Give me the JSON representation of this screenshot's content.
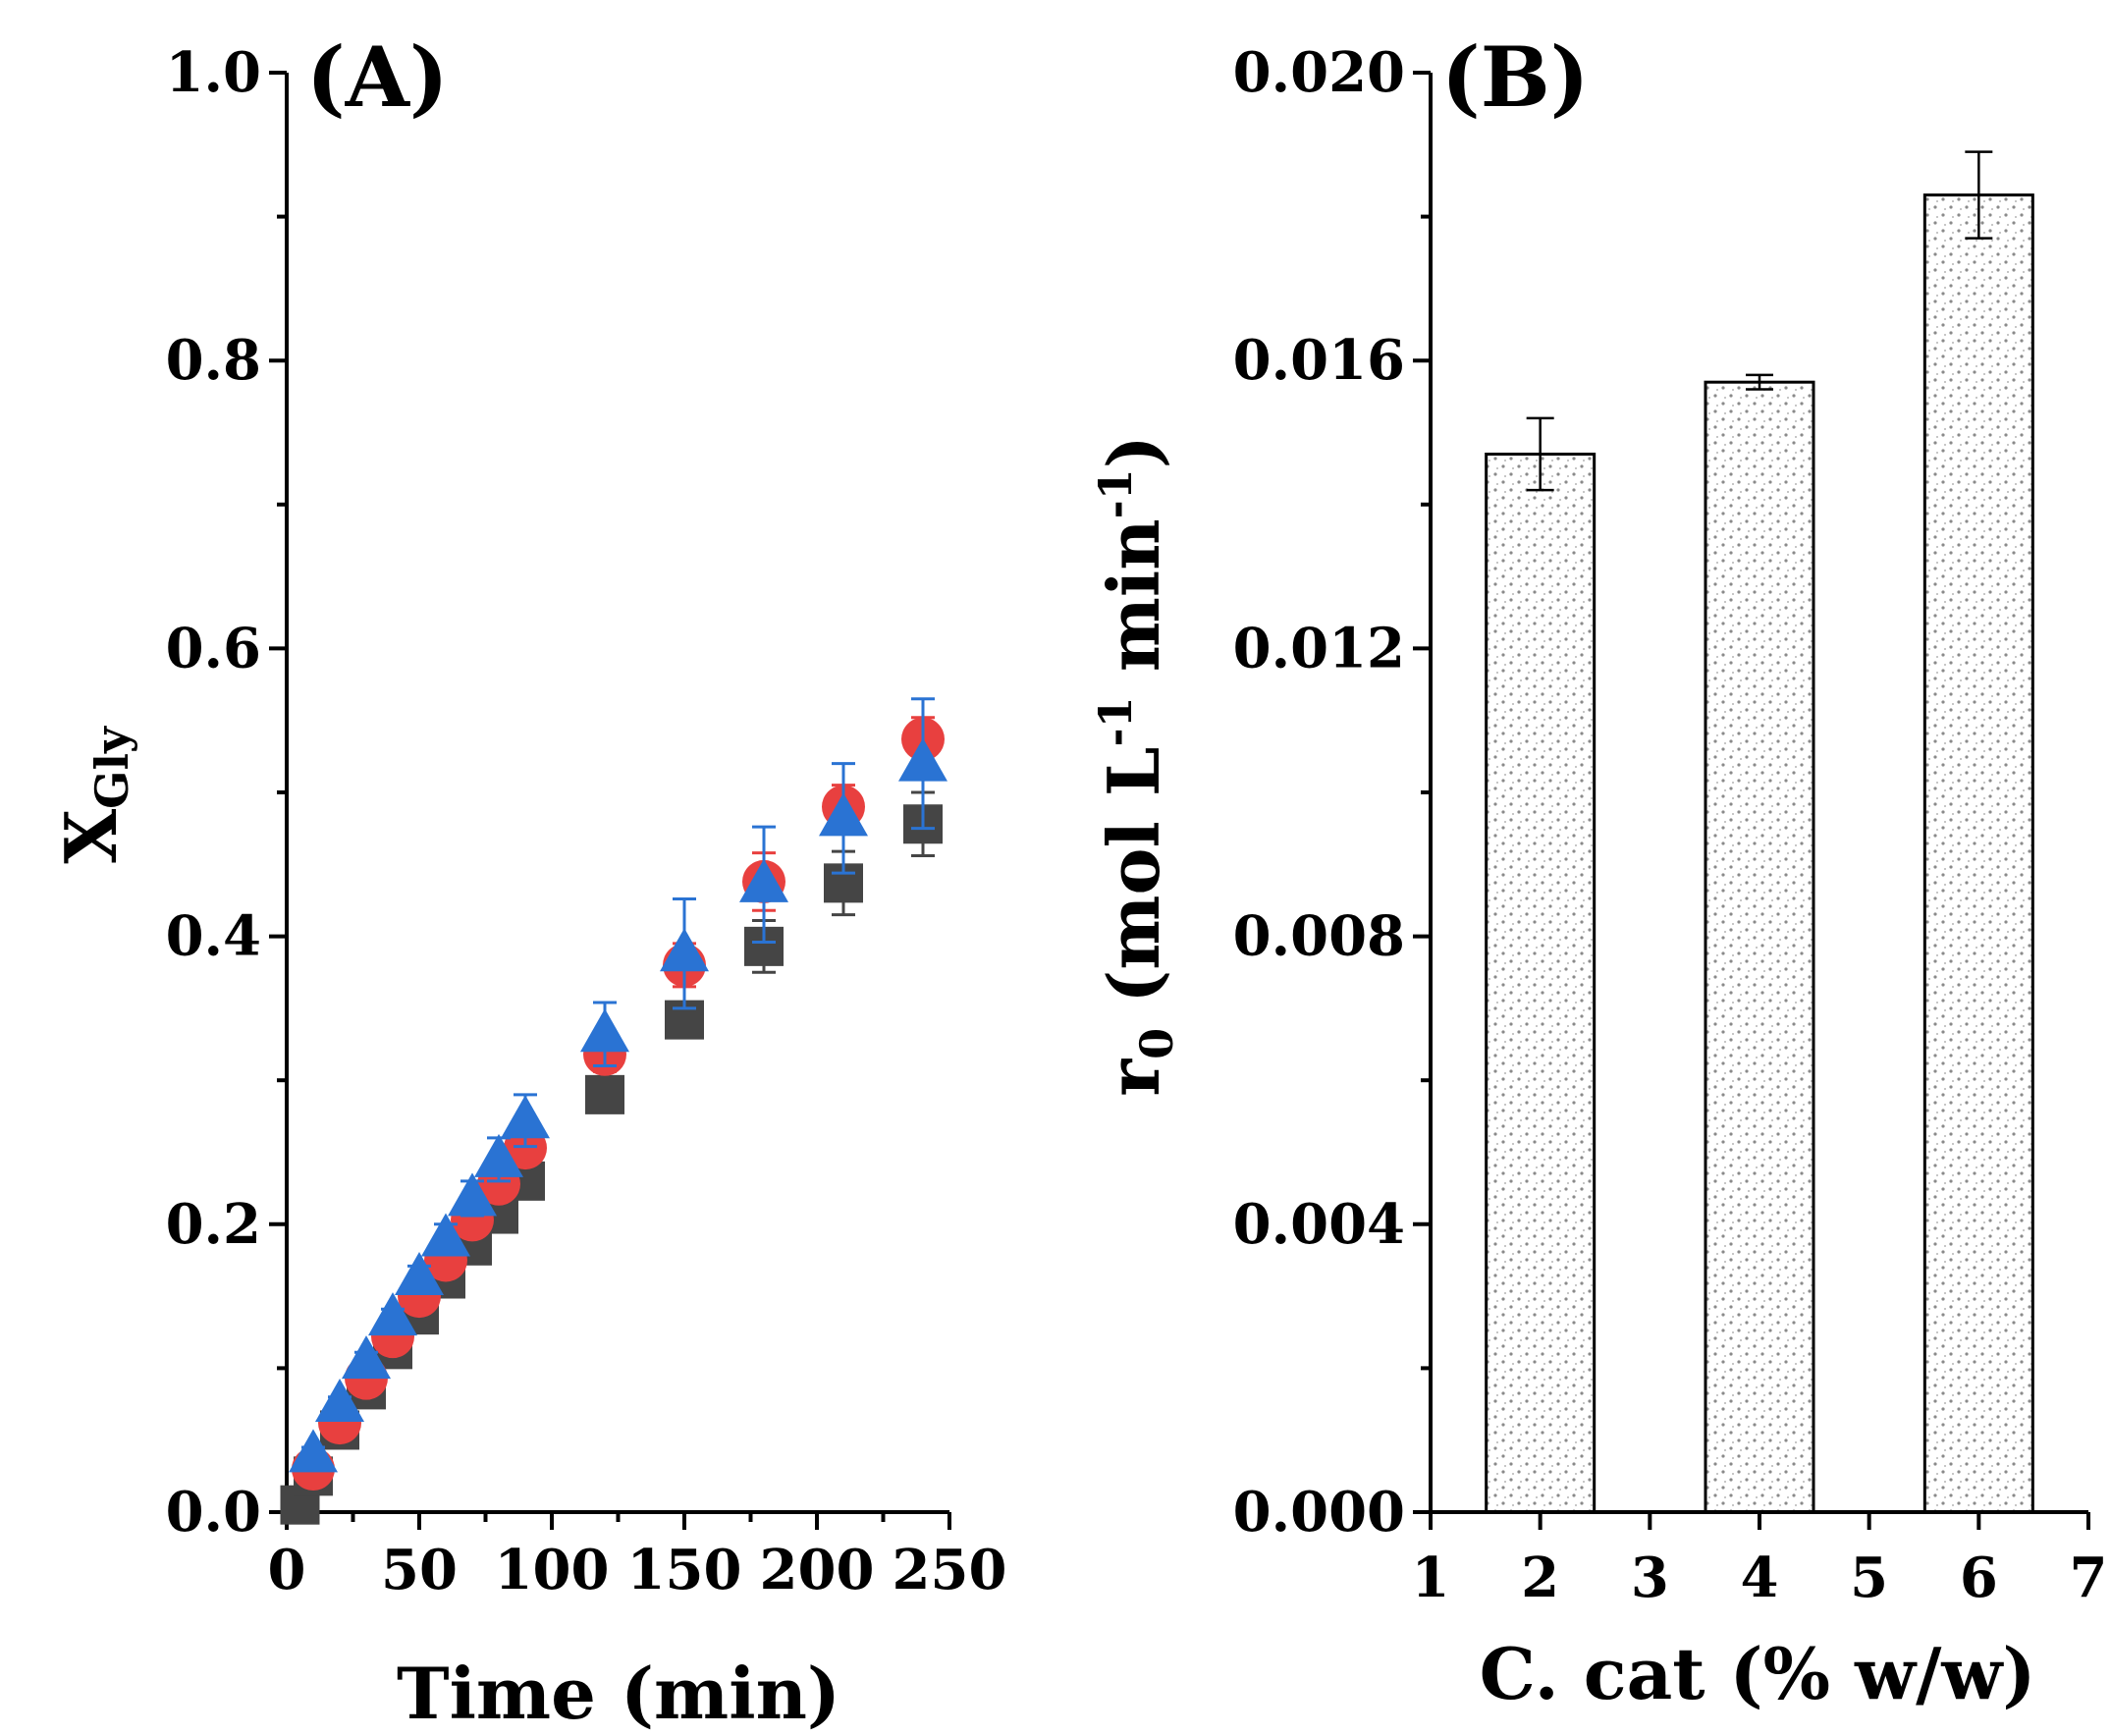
{
  "chart_data": [
    {
      "type": "scatter",
      "panel_label": "(A)",
      "xlabel": "Time (min)",
      "ylabel": "X",
      "ylabel_sub": "Gly",
      "xlim": [
        0,
        250
      ],
      "ylim": [
        0,
        1.0
      ],
      "x_ticks": [
        "0",
        "50",
        "100",
        "150",
        "200",
        "250"
      ],
      "y_ticks": [
        "0.0",
        "0.2",
        "0.4",
        "0.6",
        "0.8",
        "1.0"
      ],
      "series": [
        {
          "name": "square",
          "marker": "square",
          "color": "#454545",
          "x": [
            5,
            10,
            20,
            30,
            40,
            50,
            60,
            70,
            80,
            90,
            120,
            150,
            180,
            210,
            240
          ],
          "y": [
            0.005,
            0.025,
            0.057,
            0.085,
            0.113,
            0.137,
            0.162,
            0.185,
            0.207,
            0.23,
            0.29,
            0.342,
            0.393,
            0.437,
            0.478
          ],
          "err": [
            0.002,
            0.003,
            0.004,
            0.005,
            0.005,
            0.005,
            0.006,
            0.006,
            0.007,
            0.007,
            0.008,
            0.009,
            0.018,
            0.022,
            0.022
          ]
        },
        {
          "name": "circle",
          "marker": "circle",
          "color": "#e8403f",
          "x": [
            10,
            20,
            30,
            40,
            50,
            60,
            70,
            80,
            90,
            120,
            150,
            180,
            210,
            240
          ],
          "y": [
            0.03,
            0.062,
            0.093,
            0.122,
            0.15,
            0.175,
            0.203,
            0.228,
            0.253,
            0.318,
            0.38,
            0.438,
            0.49,
            0.537
          ],
          "err": [
            0.004,
            0.004,
            0.005,
            0.005,
            0.006,
            0.006,
            0.007,
            0.007,
            0.008,
            0.012,
            0.015,
            0.02,
            0.015,
            0.015
          ]
        },
        {
          "name": "triangle",
          "marker": "triangle",
          "color": "#2a73d3",
          "x": [
            10,
            20,
            30,
            40,
            50,
            60,
            70,
            80,
            90,
            120,
            150,
            180,
            210,
            240
          ],
          "y": [
            0.04,
            0.075,
            0.105,
            0.135,
            0.163,
            0.19,
            0.218,
            0.245,
            0.272,
            0.332,
            0.388,
            0.436,
            0.482,
            0.52
          ],
          "err": [
            0.005,
            0.005,
            0.006,
            0.006,
            0.008,
            0.01,
            0.012,
            0.015,
            0.018,
            0.022,
            0.038,
            0.04,
            0.038,
            0.045
          ]
        }
      ]
    },
    {
      "type": "bar",
      "panel_label": "(B)",
      "xlabel": "C. cat (% w/w)",
      "ylabel_prefix": "r",
      "ylabel_sub": "0",
      "ylabel_unit_1": " (mol L",
      "ylabel_sup_1": "-1",
      "ylabel_unit_2": " min",
      "ylabel_sup_2": "-1",
      "ylabel_close": ")",
      "xlim": [
        1,
        7
      ],
      "ylim": [
        0,
        0.02
      ],
      "x_ticks": [
        "1",
        "2",
        "3",
        "4",
        "5",
        "6",
        "7"
      ],
      "y_ticks": [
        "0.000",
        "0.004",
        "0.008",
        "0.012",
        "0.016",
        "0.020"
      ],
      "categories": [
        2,
        4,
        6
      ],
      "values": [
        0.0147,
        0.0157,
        0.0183
      ],
      "err": [
        0.0005,
        0.0001,
        0.0006
      ],
      "bar_fill": "#8a8a8a"
    }
  ]
}
